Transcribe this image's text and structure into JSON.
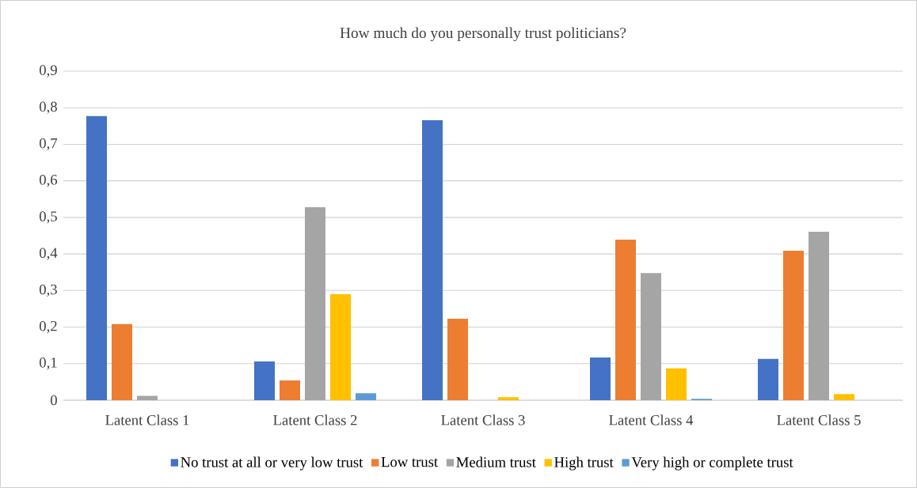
{
  "chart_data": {
    "type": "bar",
    "title": "How much do you personally trust politicians?",
    "categories": [
      "Latent Class 1",
      "Latent Class 2",
      "Latent Class 3",
      "Latent Class 4",
      "Latent Class 5"
    ],
    "series": [
      {
        "name": "No trust at all or very low trust",
        "color": "#4472c4",
        "values": [
          0.777,
          0.106,
          0.766,
          0.117,
          0.113
        ]
      },
      {
        "name": "Low trust",
        "color": "#ed7d31",
        "values": [
          0.208,
          0.054,
          0.223,
          0.439,
          0.409
        ]
      },
      {
        "name": "Medium trust",
        "color": "#a5a5a5",
        "values": [
          0.012,
          0.528,
          0,
          0.348,
          0.461
        ]
      },
      {
        "name": "High trust",
        "color": "#ffc000",
        "values": [
          0,
          0.29,
          0.008,
          0.087,
          0.017
        ]
      },
      {
        "name": "Very high or complete trust",
        "color": "#5b9bd5",
        "values": [
          0,
          0.019,
          null,
          0.004,
          0
        ]
      }
    ],
    "ylim": [
      0,
      0.9
    ],
    "yticks": [
      0,
      {
        "value": 0.1,
        "label": "0,1"
      },
      {
        "value": 0.2,
        "label": "0,2"
      },
      {
        "value": 0.3,
        "label": "0,3"
      },
      {
        "value": 0.4,
        "label": "0,4"
      },
      {
        "value": 0.5,
        "label": "0,5"
      },
      {
        "value": 0.6,
        "label": "0,6"
      },
      {
        "value": 0.7,
        "label": "0,7"
      },
      {
        "value": 0.8,
        "label": "0,8"
      },
      {
        "value": 0.9,
        "label": "0,9"
      }
    ],
    "grid": "y",
    "legend": "bottom"
  }
}
